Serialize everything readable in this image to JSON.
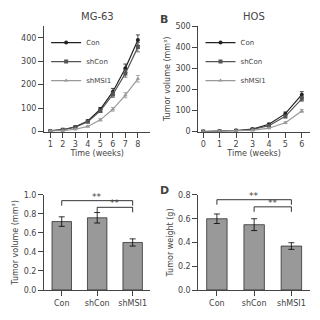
{
  "chart_data": [
    {
      "type": "line",
      "title": "MG-63",
      "xlabel": "Time (weeks)",
      "x": [
        1,
        2,
        3,
        4,
        5,
        6,
        7,
        8
      ],
      "xlim": [
        0.5,
        9
      ],
      "xticks": [
        1,
        2,
        3,
        4,
        5,
        6,
        7,
        8
      ],
      "ylim": [
        0,
        450
      ],
      "yticks": [
        0,
        100,
        200,
        300,
        400
      ],
      "grid": false,
      "legend": "upper left",
      "series": [
        {
          "name": "Con",
          "color": "#222222",
          "marker": "circle",
          "line_style": "solid",
          "values": [
            3,
            8,
            20,
            45,
            95,
            170,
            270,
            390
          ],
          "errors": [
            1,
            2,
            3,
            5,
            8,
            14,
            18,
            22
          ]
        },
        {
          "name": "shCon",
          "color": "#555555",
          "marker": "square",
          "line_style": "solid",
          "values": [
            3,
            8,
            19,
            42,
            88,
            158,
            248,
            360
          ],
          "errors": [
            1,
            2,
            3,
            4,
            7,
            12,
            16,
            20
          ]
        },
        {
          "name": "shMSI1",
          "color": "#999999",
          "marker": "triangle",
          "line_style": "solid",
          "values": [
            2,
            4,
            10,
            22,
            50,
            95,
            155,
            225
          ],
          "errors": [
            1,
            1,
            2,
            3,
            5,
            8,
            11,
            14
          ]
        }
      ]
    },
    {
      "type": "line",
      "title": "HOS",
      "xlabel": "Time (weeks)",
      "ylabel": "Tumor volume (mm³)",
      "x": [
        0,
        1,
        2,
        3,
        4,
        5,
        6
      ],
      "xlim": [
        -0.3,
        6.5
      ],
      "xticks": [
        0,
        1,
        2,
        3,
        4,
        5,
        6
      ],
      "ylim": [
        0,
        500
      ],
      "yticks": [
        0,
        100,
        200,
        300,
        400,
        500
      ],
      "grid": false,
      "legend": "upper left",
      "annotations": [
        {
          "text": "B"
        }
      ],
      "series": [
        {
          "name": "Con",
          "color": "#222222",
          "marker": "circle",
          "line_style": "solid",
          "values": [
            0,
            2,
            5,
            12,
            35,
            85,
            175
          ],
          "errors": [
            0,
            0.5,
            1,
            2,
            4,
            8,
            14
          ]
        },
        {
          "name": "shCon",
          "color": "#555555",
          "marker": "square",
          "line_style": "solid",
          "values": [
            0,
            2,
            4,
            10,
            28,
            72,
            155
          ],
          "errors": [
            0,
            0.5,
            1,
            2,
            3,
            6,
            11
          ]
        },
        {
          "name": "shMSI1",
          "color": "#999999",
          "marker": "triangle",
          "line_style": "solid",
          "values": [
            0,
            1,
            2,
            6,
            16,
            42,
            98
          ],
          "errors": [
            0,
            0.3,
            1,
            1,
            2,
            4,
            7
          ]
        }
      ]
    },
    {
      "type": "bar",
      "ylabel": "Tumor volume (mm³)",
      "categories": [
        "Con",
        "shCon",
        "shMSI1"
      ],
      "values": [
        0.72,
        0.76,
        0.5
      ],
      "errors": [
        0.05,
        0.055,
        0.038
      ],
      "color": "#999999",
      "ylim": [
        0,
        1.0
      ],
      "yticks": [
        {
          "value": 0.0,
          "label": "0.0"
        },
        0.2,
        0.4,
        0.6,
        0.8,
        {
          "value": 1.0,
          "label": "1.0"
        }
      ],
      "grid": false,
      "annotations": [
        {
          "text": "**",
          "x": [
            0,
            2
          ],
          "y": 0.94
        },
        {
          "text": "**",
          "x": [
            1,
            2
          ],
          "y": 0.87
        }
      ]
    },
    {
      "type": "bar",
      "ylabel": "Tumor weight (g)",
      "categories": [
        "Con",
        "shCon",
        "shMSI1"
      ],
      "values": [
        0.6,
        0.55,
        0.37
      ],
      "errors": [
        0.04,
        0.05,
        0.028
      ],
      "color": "#999999",
      "ylim": [
        0,
        0.8
      ],
      "yticks": [
        {
          "value": 0.0,
          "label": "0.0"
        },
        0.2,
        0.4,
        0.6,
        0.8
      ],
      "grid": false,
      "annotations": [
        {
          "text": "D"
        },
        {
          "text": "**",
          "x": [
            0,
            2
          ],
          "y": 0.76
        },
        {
          "text": "**",
          "x": [
            1,
            2
          ],
          "y": 0.7
        }
      ]
    }
  ]
}
